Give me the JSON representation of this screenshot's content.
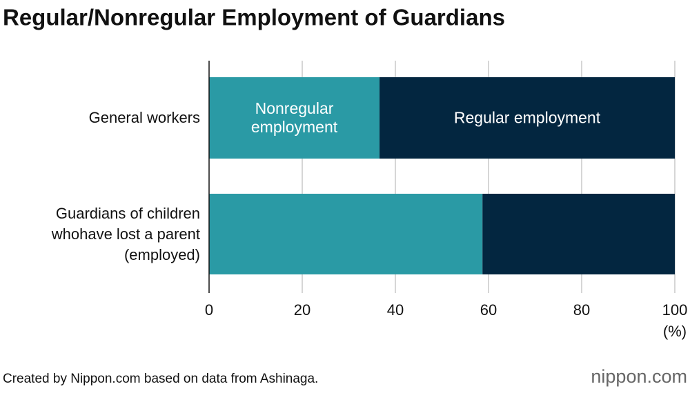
{
  "chart_data": {
    "type": "stacked-barh",
    "title": "Regular/Nonregular Employment of Guardians",
    "categories": [
      "General workers",
      "Guardians of children whohave lost a parent (employed)"
    ],
    "series": [
      {
        "name": "Nonregular employment",
        "color": "#2a9aa5",
        "values": [
          36.6,
          58.7
        ]
      },
      {
        "name": "Regular employment",
        "color": "#032640",
        "values": [
          63.4,
          41.3
        ]
      }
    ],
    "xlim": [
      0,
      100
    ],
    "xticks": [
      0,
      20,
      40,
      60,
      80,
      100
    ],
    "x_unit": "(%)",
    "grid": true,
    "source": "Created by Nippon.com based on data from Ashinaga.",
    "logo": "nippon.com"
  }
}
